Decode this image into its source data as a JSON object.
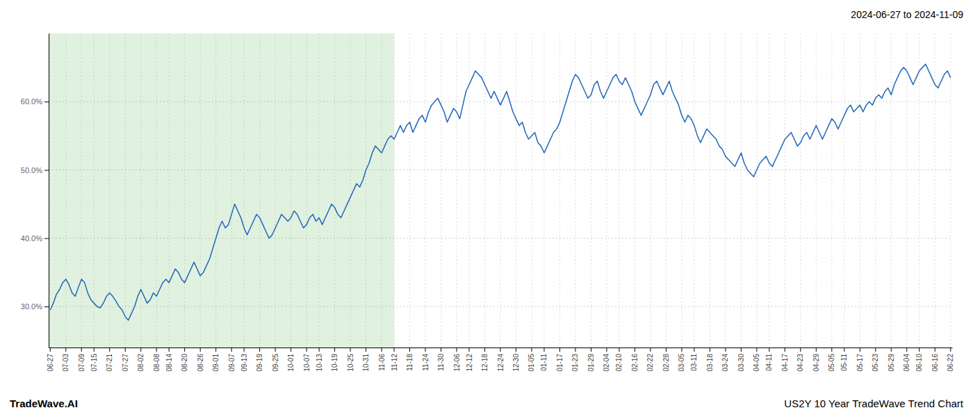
{
  "chart_data": {
    "type": "line",
    "title": "US2Y 10 Year TradeWave Trend Chart",
    "subtitle": "2024-06-27 to 2024-11-09",
    "annotations": [
      "TradeWave.AI"
    ],
    "color": "#2166b8",
    "grid": true,
    "shaded_until": "11-12",
    "ylim": [
      24,
      70
    ],
    "yticks": [
      {
        "value": 30.0,
        "label": "30.0%"
      },
      {
        "value": 40.0,
        "label": "40.0%"
      },
      {
        "value": 50.0,
        "label": "50.0%"
      },
      {
        "value": 60.0,
        "label": "60.0%"
      }
    ],
    "categories": [
      "06-27",
      null,
      null,
      null,
      null,
      "07-03",
      null,
      null,
      null,
      null,
      "07-09",
      null,
      null,
      null,
      "07-15",
      null,
      null,
      null,
      null,
      "07-21",
      null,
      null,
      null,
      null,
      "07-27",
      null,
      null,
      null,
      null,
      "08-02",
      null,
      null,
      null,
      null,
      "08-08",
      null,
      null,
      null,
      "08-14",
      null,
      null,
      null,
      null,
      "08-20",
      null,
      null,
      null,
      null,
      "08-26",
      null,
      null,
      null,
      null,
      "09-01",
      null,
      null,
      null,
      null,
      "09-07",
      null,
      null,
      null,
      "09-13",
      null,
      null,
      null,
      null,
      "09-19",
      null,
      null,
      null,
      null,
      "09-25",
      null,
      null,
      null,
      null,
      "10-01",
      null,
      null,
      null,
      null,
      "10-07",
      null,
      null,
      null,
      "10-13",
      null,
      null,
      null,
      null,
      "10-19",
      null,
      null,
      null,
      null,
      "10-25",
      null,
      null,
      null,
      null,
      "10-31",
      null,
      null,
      null,
      null,
      "11-06",
      null,
      null,
      null,
      "11-12",
      null,
      null,
      null,
      null,
      "11-18",
      null,
      null,
      null,
      null,
      "11-24",
      null,
      null,
      null,
      null,
      "11-30",
      null,
      null,
      null,
      null,
      "12-06",
      null,
      null,
      null,
      "12-12",
      null,
      null,
      null,
      null,
      "12-18",
      null,
      null,
      null,
      null,
      "12-24",
      null,
      null,
      null,
      null,
      "12-30",
      null,
      null,
      null,
      null,
      "01-05",
      null,
      null,
      null,
      "01-11",
      null,
      null,
      null,
      null,
      "01-17",
      null,
      null,
      null,
      null,
      "01-23",
      null,
      null,
      null,
      null,
      "01-29",
      null,
      null,
      null,
      null,
      "02-04",
      null,
      null,
      null,
      "02-10",
      null,
      null,
      null,
      null,
      "02-16",
      null,
      null,
      null,
      null,
      "02-22",
      null,
      null,
      null,
      null,
      "02-28",
      null,
      null,
      null,
      null,
      "03-05",
      null,
      null,
      null,
      "03-11",
      null,
      null,
      null,
      null,
      "03-18",
      null,
      null,
      null,
      null,
      "03-24",
      null,
      null,
      null,
      null,
      "03-30",
      null,
      null,
      null,
      null,
      "04-05",
      null,
      null,
      null,
      "04-11",
      null,
      null,
      null,
      null,
      "04-17",
      null,
      null,
      null,
      null,
      "04-23",
      null,
      null,
      null,
      null,
      "04-29",
      null,
      null,
      null,
      null,
      "05-05",
      null,
      null,
      null,
      "05-11",
      null,
      null,
      null,
      null,
      "05-17",
      null,
      null,
      null,
      null,
      "05-23",
      null,
      null,
      null,
      null,
      "05-29",
      null,
      null,
      null,
      null,
      "06-04",
      null,
      null,
      null,
      "06-10",
      null,
      null,
      null,
      null,
      "06-16",
      null,
      null,
      null,
      null,
      "06-22"
    ],
    "values": [
      29.5,
      30.5,
      31.8,
      32.5,
      33.5,
      34.0,
      33.2,
      32.0,
      31.5,
      32.8,
      34.0,
      33.5,
      32.0,
      31.0,
      30.5,
      30.0,
      29.8,
      30.5,
      31.5,
      32.0,
      31.5,
      30.8,
      30.0,
      29.5,
      28.5,
      28.0,
      29.0,
      30.0,
      31.5,
      32.5,
      31.5,
      30.5,
      31.0,
      32.0,
      31.5,
      32.5,
      33.5,
      34.0,
      33.5,
      34.5,
      35.5,
      35.0,
      34.0,
      33.5,
      34.5,
      35.5,
      36.5,
      35.5,
      34.5,
      35.0,
      36.0,
      37.0,
      38.5,
      40.0,
      41.5,
      42.5,
      41.5,
      42.0,
      43.5,
      45.0,
      44.0,
      43.0,
      41.5,
      40.5,
      41.5,
      42.5,
      43.5,
      43.0,
      42.0,
      41.0,
      40.0,
      40.5,
      41.5,
      42.5,
      43.5,
      43.0,
      42.5,
      43.0,
      44.0,
      43.5,
      42.5,
      41.5,
      42.0,
      43.0,
      43.5,
      42.5,
      43.0,
      42.0,
      43.0,
      44.0,
      45.0,
      44.5,
      43.5,
      43.0,
      44.0,
      45.0,
      46.0,
      47.0,
      48.0,
      47.5,
      48.5,
      50.0,
      51.0,
      52.5,
      53.5,
      53.0,
      52.5,
      53.5,
      54.5,
      55.0,
      54.5,
      55.5,
      56.5,
      55.5,
      56.5,
      57.0,
      55.5,
      56.5,
      57.5,
      58.0,
      57.0,
      58.5,
      59.5,
      60.0,
      60.5,
      59.5,
      58.5,
      57.0,
      58.0,
      59.0,
      58.5,
      57.5,
      59.5,
      61.5,
      62.5,
      63.5,
      64.5,
      64.0,
      63.5,
      62.5,
      61.5,
      60.5,
      61.5,
      60.5,
      59.5,
      60.5,
      61.5,
      60.0,
      58.5,
      57.5,
      56.5,
      57.0,
      55.5,
      54.5,
      55.0,
      55.5,
      54.0,
      53.5,
      52.5,
      53.5,
      54.5,
      55.5,
      56.0,
      57.0,
      58.5,
      60.0,
      61.5,
      63.0,
      64.0,
      63.5,
      62.5,
      61.5,
      60.5,
      61.0,
      62.5,
      63.0,
      61.5,
      60.5,
      61.5,
      62.5,
      63.5,
      64.0,
      63.0,
      62.5,
      63.5,
      62.5,
      61.5,
      60.0,
      59.0,
      58.0,
      59.0,
      60.0,
      61.0,
      62.5,
      63.0,
      62.0,
      61.0,
      62.0,
      63.0,
      61.5,
      60.5,
      59.5,
      58.0,
      57.0,
      58.0,
      57.5,
      56.5,
      55.0,
      54.0,
      55.0,
      56.0,
      55.5,
      55.0,
      54.5,
      53.5,
      53.0,
      52.0,
      51.5,
      51.0,
      50.5,
      51.5,
      52.5,
      51.0,
      50.0,
      49.5,
      49.0,
      50.0,
      51.0,
      51.5,
      52.0,
      51.0,
      50.5,
      51.5,
      52.5,
      53.5,
      54.5,
      55.0,
      55.5,
      54.5,
      53.5,
      54.0,
      55.0,
      55.5,
      54.5,
      55.5,
      56.5,
      55.5,
      54.5,
      55.5,
      56.5,
      57.5,
      57.0,
      56.0,
      57.0,
      58.0,
      59.0,
      59.5,
      58.5,
      59.0,
      59.5,
      58.5,
      59.5,
      60.0,
      59.5,
      60.5,
      61.0,
      60.5,
      61.5,
      62.0,
      61.0,
      62.5,
      63.5,
      64.5,
      65.0,
      64.5,
      63.5,
      62.5,
      63.5,
      64.5,
      65.0,
      65.5,
      64.5,
      63.5,
      62.5,
      62.0,
      63.0,
      64.0,
      64.5,
      63.5
    ]
  }
}
